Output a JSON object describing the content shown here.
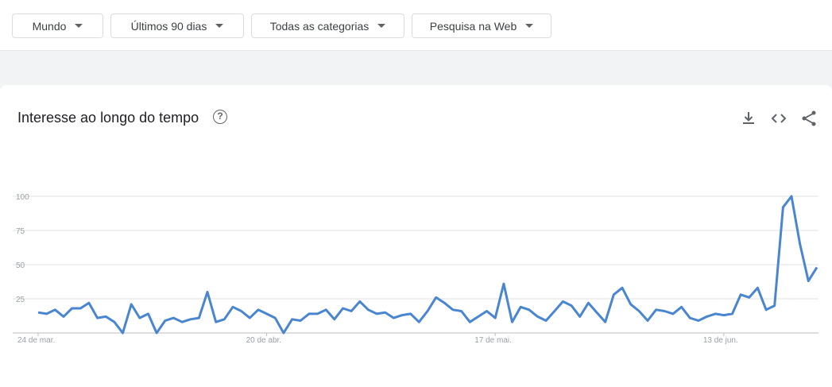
{
  "filters": {
    "region": "Mundo",
    "period": "Últimos 90 dias",
    "category": "Todas as categorias",
    "search_type": "Pesquisa na Web"
  },
  "panel": {
    "title": "Interesse ao longo do tempo",
    "help_glyph": "?",
    "icons": [
      "download-icon",
      "embed-icon",
      "share-icon"
    ]
  },
  "colors": {
    "line": "#4a86d0",
    "grid": "#e0e0e0",
    "axis": "#9aa0a6"
  },
  "chart_data": {
    "type": "line",
    "title": "",
    "xlabel": "",
    "ylabel": "",
    "ylim": [
      0,
      100
    ],
    "y_ticks": [
      "25",
      "50",
      "75",
      "100"
    ],
    "x_tick_labels": [
      {
        "label": "24 de mar.",
        "index": 0
      },
      {
        "label": "20 de abr.",
        "index": 27
      },
      {
        "label": "17 de mai.",
        "index": 54
      },
      {
        "label": "13 de jun.",
        "index": 81
      }
    ],
    "grid": true,
    "series": [
      {
        "values": [
          15,
          14,
          17,
          12,
          18,
          18,
          22,
          11,
          12,
          8,
          0,
          21,
          11,
          14,
          0,
          9,
          11,
          8,
          10,
          11,
          30,
          8,
          10,
          19,
          16,
          11,
          17,
          14,
          11,
          0,
          10,
          9,
          14,
          14,
          17,
          10,
          18,
          16,
          23,
          17,
          14,
          15,
          11,
          13,
          14,
          8,
          16,
          26,
          22,
          17,
          16,
          8,
          12,
          16,
          11,
          36,
          8,
          19,
          17,
          12,
          9,
          16,
          23,
          20,
          12,
          22,
          15,
          8,
          28,
          33,
          21,
          16,
          9,
          17,
          16,
          14,
          19,
          11,
          9,
          12,
          14,
          13,
          14,
          28,
          26,
          33,
          17,
          20,
          92,
          100,
          65,
          38,
          48
        ]
      }
    ]
  }
}
